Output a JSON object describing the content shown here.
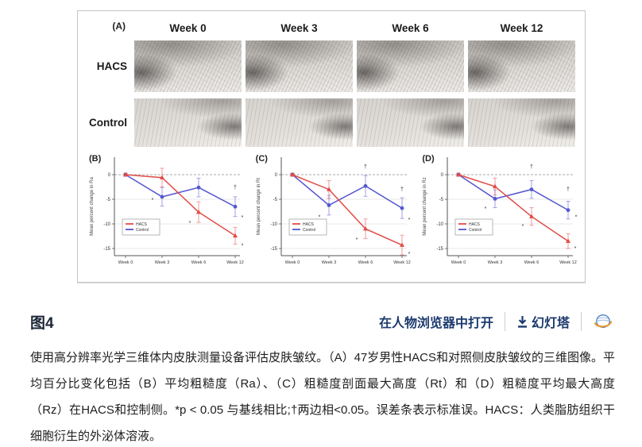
{
  "header": {
    "title": "图4"
  },
  "toolbar": {
    "open_link": "在人物浏览器中打开",
    "slides_link": "幻灯塔"
  },
  "caption": {
    "text": "使用高分辨率光学三维体内皮肤测量设备评估皮肤皱纹。（A）47岁男性HACS和对照侧皮肤皱纹的三维图像。平均百分比变化包括（B）平均粗糙度（Ra）、（C）粗糙度剖面最大高度（Rt）和（D）粗糙度平均最大高度（Rz）在HACS和控制侧。*p < 0.05 与基线相比;†两边相<0.05。误差条表示标准误。HACS：人类脂肪组织干细胞衍生的外泌体溶液。"
  },
  "panel_a": {
    "label": "(A)",
    "weeks": [
      "Week 0",
      "Week 3",
      "Week 6",
      "Week 12"
    ],
    "rows": [
      "HACS",
      "Control"
    ]
  },
  "colors": {
    "hacs": "#e14b45",
    "control": "#5456cf",
    "link_navy": "#1c3a6e",
    "logo_orange": "#e8952e",
    "logo_blue": "#4a7fc1"
  },
  "chart_data": [
    {
      "type": "line",
      "panel_label": "(B)",
      "ylabel": "Mean percent change in Ra",
      "x_labels": [
        "Week 0",
        "Week 3",
        "Week 6",
        "Week 12"
      ],
      "yticks": [
        0,
        -5,
        -10,
        -15
      ],
      "ylim": [
        2,
        -16.5
      ],
      "zero_line": "dashed",
      "legend_position": "lower-left",
      "series": [
        {
          "name": "HACS",
          "color": "#e14b45",
          "marker": "triangle",
          "values": [
            0,
            -0.6,
            -7.6,
            -12.4
          ],
          "err": [
            0.3,
            1.9,
            2.1,
            1.7
          ]
        },
        {
          "name": "Control",
          "color": "#5456cf",
          "marker": "circle",
          "values": [
            0,
            -4.5,
            -2.6,
            -6.5
          ],
          "err": [
            0.3,
            1.9,
            1.9,
            2.0
          ]
        }
      ],
      "annotations": [
        {
          "text": "*",
          "xi": 1,
          "v": -5.2,
          "dx": -12
        },
        {
          "text": "*",
          "xi": 2,
          "v": -9.8,
          "dx": -11
        },
        {
          "text": "†",
          "xi": 3,
          "v": -2.6,
          "dx": 0
        },
        {
          "text": "*",
          "xi": 3,
          "v": -8.7,
          "dx": 9
        },
        {
          "text": "*",
          "xi": 3,
          "v": -14.4,
          "dx": 9
        }
      ]
    },
    {
      "type": "line",
      "panel_label": "(C)",
      "ylabel": "Mean percent change in Rt",
      "x_labels": [
        "Week 0",
        "Week 3",
        "Week 6",
        "Week 12"
      ],
      "yticks": [
        0,
        -5,
        -10,
        -15
      ],
      "ylim": [
        2,
        -16.5
      ],
      "zero_line": "dashed",
      "legend_position": "lower-left",
      "series": [
        {
          "name": "HACS",
          "color": "#e14b45",
          "marker": "triangle",
          "values": [
            0,
            -3.0,
            -11.0,
            -14.3
          ],
          "err": [
            0.3,
            1.8,
            2.0,
            2.0
          ]
        },
        {
          "name": "Control",
          "color": "#5456cf",
          "marker": "circle",
          "values": [
            0,
            -6.2,
            -2.3,
            -6.8
          ],
          "err": [
            0.3,
            2.0,
            2.1,
            2.1
          ]
        }
      ],
      "annotations": [
        {
          "text": "*",
          "xi": 1,
          "v": -8.6,
          "dx": -12
        },
        {
          "text": "†",
          "xi": 2,
          "v": 1.6,
          "dx": 0
        },
        {
          "text": "*",
          "xi": 2,
          "v": -13.2,
          "dx": -11
        },
        {
          "text": "†",
          "xi": 3,
          "v": -3.0,
          "dx": 0
        },
        {
          "text": "*",
          "xi": 3,
          "v": -9.2,
          "dx": 9
        },
        {
          "text": "*",
          "xi": 3,
          "v": -16.1,
          "dx": 9
        }
      ]
    },
    {
      "type": "line",
      "panel_label": "(D)",
      "ylabel": "Mean percent change in Rz",
      "x_labels": [
        "Week 0",
        "Week 3",
        "Week 6",
        "Week 12"
      ],
      "yticks": [
        0,
        -5,
        -10,
        -15
      ],
      "ylim": [
        2,
        -16.5
      ],
      "zero_line": "dashed",
      "legend_position": "lower-left",
      "series": [
        {
          "name": "HACS",
          "color": "#e14b45",
          "marker": "triangle",
          "values": [
            0,
            -2.4,
            -8.5,
            -13.5
          ],
          "err": [
            0.3,
            1.7,
            1.8,
            1.5
          ]
        },
        {
          "name": "Control",
          "color": "#5456cf",
          "marker": "circle",
          "values": [
            0,
            -4.9,
            -3.0,
            -7.2
          ],
          "err": [
            0.3,
            1.8,
            1.8,
            1.8
          ]
        }
      ],
      "annotations": [
        {
          "text": "*",
          "xi": 1,
          "v": -6.9,
          "dx": -12
        },
        {
          "text": "†",
          "xi": 2,
          "v": 1.6,
          "dx": 0
        },
        {
          "text": "*",
          "xi": 2,
          "v": -10.5,
          "dx": -11
        },
        {
          "text": "†",
          "xi": 3,
          "v": -3.0,
          "dx": 0
        },
        {
          "text": "*",
          "xi": 3,
          "v": -8.6,
          "dx": 10
        },
        {
          "text": "*",
          "xi": 3,
          "v": -15.0,
          "dx": 9
        }
      ]
    }
  ]
}
